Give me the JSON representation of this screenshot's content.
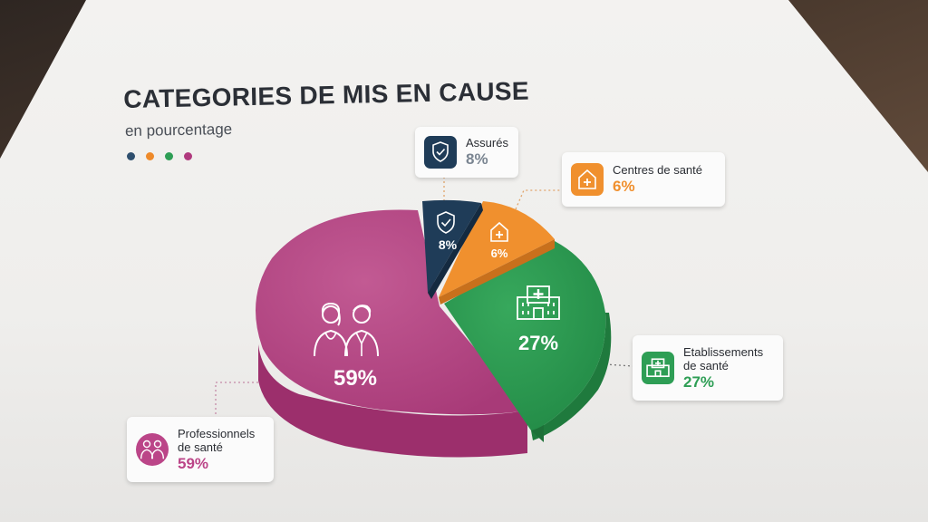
{
  "title": "CATEGORIES DE MIS EN CAUSE",
  "subtitle": "en pourcentage",
  "legend_dot_colors": [
    "#2f4f6e",
    "#ee8a2a",
    "#2e9e55",
    "#b03a7e"
  ],
  "chart_data": {
    "type": "pie",
    "title": "CATEGORIES DE MIS EN CAUSE",
    "subtitle": "en pourcentage",
    "unit": "%",
    "slices": [
      {
        "label": "Assurés",
        "value": 8,
        "display": "8%",
        "color": "#1f3c58",
        "icon": "shield-check-icon"
      },
      {
        "label": "Centres de santé",
        "value": 6,
        "display": "6%",
        "color": "#f0902e",
        "icon": "house-medical-icon"
      },
      {
        "label": "Etablissements de santé",
        "value": 27,
        "display": "27%",
        "color": "#2e9e55",
        "icon": "hospital-icon"
      },
      {
        "label": "Professionnels de santé",
        "value": 59,
        "display": "59%",
        "color": "#bb4588",
        "icon": "doctors-icon"
      }
    ]
  },
  "callouts": {
    "assures": {
      "label": "Assurés",
      "pct": "8%"
    },
    "centres": {
      "label": "Centres de santé",
      "pct": "6%"
    },
    "etab": {
      "line1": "Etablissements",
      "line2": "de santé",
      "pct": "27%"
    },
    "pros": {
      "line1": "Professionnels",
      "line2": "de santé",
      "pct": "59%"
    }
  },
  "colors": {
    "assures": "#1f3c58",
    "centres": "#f0902e",
    "etab": "#2e9e55",
    "pros": "#bb4588"
  }
}
